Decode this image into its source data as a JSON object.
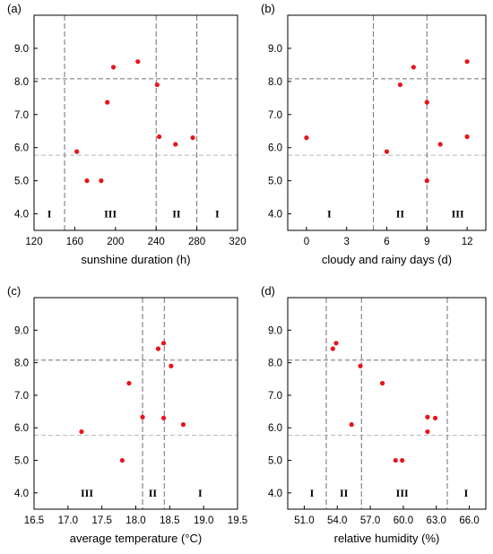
{
  "figure": {
    "colors": {
      "point": "#e8141b",
      "vline": "#707070",
      "hline_upper": "#707070",
      "hline_lower": "#b8b8b8",
      "frame": "#000000"
    }
  },
  "chart_data": [
    {
      "type": "scatter",
      "panel_label": "(a)",
      "xlabel": "sunshine duration (h)",
      "ylabel": "",
      "xlim": [
        120,
        320
      ],
      "ylim": [
        3.5,
        10.0
      ],
      "xticks": [
        120,
        160,
        200,
        240,
        280,
        320
      ],
      "yticks": [
        4.0,
        5.0,
        6.0,
        7.0,
        8.0,
        9.0
      ],
      "xtick_labels": [
        "120",
        "160",
        "200",
        "240",
        "280",
        "320"
      ],
      "ytick_labels": [
        "4.0",
        "5.0",
        "6.0",
        "7.0",
        "8.0",
        "9.0"
      ],
      "vlines": [
        150,
        240,
        280
      ],
      "hlines_upper": [
        8.08
      ],
      "hlines_lower": [
        5.77
      ],
      "zone_labels": [
        {
          "text": "I",
          "x": 135
        },
        {
          "text": "III",
          "x": 195
        },
        {
          "text": "II",
          "x": 260
        },
        {
          "text": "I",
          "x": 300
        }
      ],
      "points": [
        {
          "x": 162,
          "y": 5.88
        },
        {
          "x": 172,
          "y": 5.0
        },
        {
          "x": 186,
          "y": 5.0
        },
        {
          "x": 192,
          "y": 7.37
        },
        {
          "x": 198,
          "y": 8.43
        },
        {
          "x": 222,
          "y": 8.6
        },
        {
          "x": 241,
          "y": 7.9
        },
        {
          "x": 243,
          "y": 6.33
        },
        {
          "x": 259,
          "y": 6.1
        },
        {
          "x": 276,
          "y": 6.3
        }
      ]
    },
    {
      "type": "scatter",
      "panel_label": "(b)",
      "xlabel": "cloudy and rainy days (d)",
      "ylabel": "",
      "xlim": [
        -1.4,
        13.4
      ],
      "ylim": [
        3.5,
        10.0
      ],
      "xticks": [
        0,
        3,
        6,
        9,
        12
      ],
      "yticks": [
        4.0,
        5.0,
        6.0,
        7.0,
        8.0,
        9.0
      ],
      "xtick_labels": [
        "0",
        "3",
        "6",
        "9",
        "12"
      ],
      "ytick_labels": [
        "4.0",
        "5.0",
        "6.0",
        "7.0",
        "8.0",
        "9.0"
      ],
      "vlines": [
        5,
        9
      ],
      "hlines_upper": [
        8.08
      ],
      "hlines_lower": [
        5.77
      ],
      "zone_labels": [
        {
          "text": "I",
          "x": 1.7
        },
        {
          "text": "II",
          "x": 7.0
        },
        {
          "text": "III",
          "x": 11.3
        }
      ],
      "points": [
        {
          "x": 0,
          "y": 6.3
        },
        {
          "x": 6,
          "y": 5.88
        },
        {
          "x": 7,
          "y": 7.9
        },
        {
          "x": 8,
          "y": 8.43
        },
        {
          "x": 9,
          "y": 7.37
        },
        {
          "x": 9,
          "y": 5.0
        },
        {
          "x": 10,
          "y": 6.1
        },
        {
          "x": 12,
          "y": 8.6
        },
        {
          "x": 12,
          "y": 6.33
        }
      ]
    },
    {
      "type": "scatter",
      "panel_label": "(c)",
      "xlabel": "average temperature (°C)",
      "ylabel": "",
      "xlim": [
        16.5,
        19.5
      ],
      "ylim": [
        3.5,
        10.0
      ],
      "xticks": [
        16.5,
        17.0,
        17.5,
        18.0,
        18.5,
        19.0,
        19.5
      ],
      "yticks": [
        4.0,
        5.0,
        6.0,
        7.0,
        8.0,
        9.0
      ],
      "xtick_labels": [
        "16.5",
        "17.0",
        "17.5",
        "18.0",
        "18.5",
        "19.0",
        "19.5"
      ],
      "ytick_labels": [
        "4.0",
        "5.0",
        "6.0",
        "7.0",
        "8.0",
        "9.0"
      ],
      "vlines": [
        18.1,
        18.42
      ],
      "hlines_upper": [
        8.08
      ],
      "hlines_lower": [
        5.77
      ],
      "zone_labels": [
        {
          "text": "III",
          "x": 17.28
        },
        {
          "text": "II",
          "x": 18.25
        },
        {
          "text": "I",
          "x": 18.95
        }
      ],
      "points": [
        {
          "x": 17.2,
          "y": 5.88
        },
        {
          "x": 17.8,
          "y": 5.0
        },
        {
          "x": 17.9,
          "y": 7.37
        },
        {
          "x": 18.1,
          "y": 6.33
        },
        {
          "x": 18.33,
          "y": 8.43
        },
        {
          "x": 18.41,
          "y": 8.6
        },
        {
          "x": 18.41,
          "y": 6.3
        },
        {
          "x": 18.52,
          "y": 7.9
        },
        {
          "x": 18.7,
          "y": 6.1
        }
      ]
    },
    {
      "type": "scatter",
      "panel_label": "(d)",
      "xlabel": "relative humidity (%)",
      "ylabel": "",
      "xlim": [
        49.5,
        67.5
      ],
      "ylim": [
        3.5,
        10.0
      ],
      "xticks": [
        51.0,
        54.0,
        57.0,
        60.0,
        63.0,
        66.0
      ],
      "yticks": [
        4.0,
        5.0,
        6.0,
        7.0,
        8.0,
        9.0
      ],
      "xtick_labels": [
        "51.0",
        "54.0",
        "57.0",
        "60.0",
        "63.0",
        "66.0"
      ],
      "ytick_labels": [
        "4.0",
        "5.0",
        "6.0",
        "7.0",
        "8.0",
        "9.0"
      ],
      "vlines": [
        53.0,
        56.2,
        64.0
      ],
      "hlines_upper": [
        8.08
      ],
      "hlines_lower": [
        5.77
      ],
      "zone_labels": [
        {
          "text": "I",
          "x": 51.7
        },
        {
          "text": "II",
          "x": 54.6
        },
        {
          "text": "III",
          "x": 59.9
        },
        {
          "text": "I",
          "x": 65.7
        }
      ],
      "points": [
        {
          "x": 53.6,
          "y": 8.43
        },
        {
          "x": 53.9,
          "y": 8.6
        },
        {
          "x": 55.3,
          "y": 6.1
        },
        {
          "x": 56.1,
          "y": 7.9
        },
        {
          "x": 58.1,
          "y": 7.37
        },
        {
          "x": 59.3,
          "y": 5.0
        },
        {
          "x": 59.9,
          "y": 5.0
        },
        {
          "x": 62.2,
          "y": 6.33
        },
        {
          "x": 62.2,
          "y": 5.88
        },
        {
          "x": 62.9,
          "y": 6.3
        }
      ]
    }
  ]
}
